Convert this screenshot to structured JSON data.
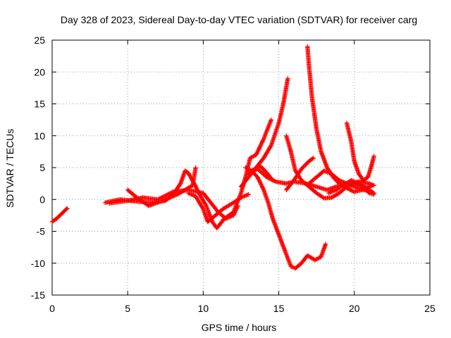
{
  "chart_data": {
    "type": "scatter",
    "title": "Day 328 of 2023, Sidereal Day-to-day VTEC variation (SDTVAR) for receiver carg",
    "xlabel": "GPS time / hours",
    "ylabel": "SDTVAR / TECUs",
    "xlim": [
      0,
      25
    ],
    "ylim": [
      -15,
      25
    ],
    "xticks": [
      "0",
      "5",
      "10",
      "15",
      "20",
      "25"
    ],
    "yticks": [
      "25",
      "20",
      "15",
      "10",
      "5",
      "0",
      "-5",
      "-10",
      "-15"
    ],
    "grid": true,
    "marker": "+",
    "color": "#ff0000",
    "series": [
      {
        "name": "s1",
        "points": [
          [
            0,
            -3.5
          ],
          [
            0.3,
            -3.0
          ],
          [
            0.6,
            -2.3
          ],
          [
            0.9,
            -1.6
          ],
          [
            1.0,
            -1.4
          ]
        ]
      },
      {
        "name": "s2",
        "points": [
          [
            3.5,
            -0.5
          ],
          [
            4.5,
            0.0
          ],
          [
            5.5,
            -0.3
          ],
          [
            6.5,
            -0.5
          ],
          [
            7.5,
            -0.2
          ],
          [
            8.0,
            0.8
          ],
          [
            8.5,
            2.5
          ],
          [
            8.8,
            4.5
          ],
          [
            9.0,
            4.2
          ],
          [
            9.4,
            2.5
          ],
          [
            9.8,
            0.6
          ],
          [
            10.2,
            -1.0
          ],
          [
            10.6,
            -3.5
          ],
          [
            10.9,
            -4.5
          ],
          [
            11.4,
            -3.0
          ],
          [
            12.0,
            -2.0
          ],
          [
            12.5,
            1.0
          ],
          [
            12.8,
            3.5
          ],
          [
            13.1,
            6.5
          ],
          [
            13.5,
            7.0
          ],
          [
            14.0,
            9.5
          ],
          [
            14.5,
            12.5
          ]
        ]
      },
      {
        "name": "s3",
        "points": [
          [
            3.8,
            -0.6
          ],
          [
            5.0,
            -0.2
          ],
          [
            6.0,
            0.3
          ],
          [
            7.0,
            0.0
          ],
          [
            8.0,
            1.2
          ],
          [
            9.0,
            1.5
          ],
          [
            10.0,
            1.0
          ],
          [
            10.5,
            -0.5
          ],
          [
            11.0,
            -2.0
          ],
          [
            11.5,
            -3.0
          ],
          [
            12.0,
            -2.5
          ],
          [
            12.3,
            -1.0
          ]
        ]
      },
      {
        "name": "s4",
        "points": [
          [
            5.0,
            1.5
          ],
          [
            5.6,
            0.3
          ],
          [
            6.4,
            -1.0
          ],
          [
            7.2,
            -0.3
          ],
          [
            8.3,
            0.8
          ],
          [
            9.3,
            2.2
          ],
          [
            9.5,
            5.0
          ]
        ]
      },
      {
        "name": "s5",
        "points": [
          [
            9.0,
            1.0
          ],
          [
            9.5,
            0.5
          ],
          [
            10.0,
            -1.5
          ],
          [
            10.3,
            -3.5
          ],
          [
            10.8,
            -2.5
          ],
          [
            11.3,
            -1.5
          ],
          [
            12.0,
            -0.5
          ],
          [
            12.5,
            0.3
          ],
          [
            13.0,
            0.8
          ]
        ]
      },
      {
        "name": "s6",
        "points": [
          [
            12.5,
            2.0
          ],
          [
            13.0,
            3.5
          ],
          [
            13.5,
            5.0
          ],
          [
            14.0,
            6.5
          ],
          [
            14.5,
            8.5
          ],
          [
            15.0,
            12.0
          ],
          [
            15.3,
            15.0
          ],
          [
            15.6,
            19.0
          ]
        ]
      },
      {
        "name": "s7",
        "points": [
          [
            12.8,
            5.0
          ],
          [
            13.2,
            4.5
          ],
          [
            13.6,
            3.5
          ],
          [
            14.0,
            1.5
          ],
          [
            14.3,
            -0.5
          ],
          [
            14.6,
            -3.0
          ],
          [
            15.0,
            -5.5
          ],
          [
            15.4,
            -8.0
          ],
          [
            15.8,
            -10.5
          ],
          [
            16.1,
            -10.8
          ],
          [
            16.5,
            -10.0
          ],
          [
            16.9,
            -8.8
          ],
          [
            17.4,
            -9.5
          ],
          [
            17.8,
            -9.0
          ],
          [
            18.1,
            -7.0
          ]
        ]
      },
      {
        "name": "s8",
        "points": [
          [
            13.0,
            4.0
          ],
          [
            13.6,
            4.8
          ],
          [
            14.2,
            3.5
          ],
          [
            14.8,
            2.8
          ],
          [
            15.5,
            2.5
          ],
          [
            16.0,
            2.8
          ],
          [
            16.8,
            2.5
          ],
          [
            17.5,
            2.0
          ],
          [
            18.2,
            1.5
          ],
          [
            18.8,
            2.0
          ],
          [
            19.5,
            2.5
          ],
          [
            20.3,
            2.8
          ],
          [
            21.0,
            2.5
          ],
          [
            21.3,
            2.2
          ]
        ]
      },
      {
        "name": "s9",
        "points": [
          [
            13.2,
            4.5
          ],
          [
            13.8,
            5.2
          ],
          [
            14.2,
            4.2
          ],
          [
            14.6,
            3.0
          ]
        ]
      },
      {
        "name": "s10",
        "points": [
          [
            15.5,
            10.0
          ],
          [
            15.8,
            7.5
          ],
          [
            16.1,
            4.5
          ],
          [
            16.5,
            3.0
          ],
          [
            17.0,
            2.0
          ],
          [
            17.5,
            1.0
          ],
          [
            18.0,
            0.2
          ],
          [
            18.5,
            0.3
          ],
          [
            19.0,
            1.0
          ],
          [
            19.5,
            2.0
          ],
          [
            20.0,
            2.5
          ],
          [
            20.5,
            2.0
          ],
          [
            21.0,
            1.0
          ],
          [
            21.3,
            0.8
          ]
        ]
      },
      {
        "name": "s11",
        "points": [
          [
            16.9,
            24.0
          ],
          [
            17.0,
            21.0
          ],
          [
            17.2,
            16.0
          ],
          [
            17.5,
            11.0
          ],
          [
            17.8,
            7.5
          ],
          [
            18.2,
            5.0
          ],
          [
            18.6,
            3.5
          ],
          [
            19.0,
            2.5
          ],
          [
            19.5,
            1.8
          ],
          [
            20.0,
            1.2
          ],
          [
            20.5,
            1.5
          ],
          [
            21.0,
            2.0
          ],
          [
            21.2,
            2.2
          ]
        ]
      },
      {
        "name": "s12",
        "points": [
          [
            15.5,
            1.5
          ],
          [
            16.0,
            3.0
          ],
          [
            16.5,
            4.8
          ],
          [
            17.0,
            6.0
          ],
          [
            17.3,
            6.5
          ]
        ]
      },
      {
        "name": "s13",
        "points": [
          [
            17.0,
            2.5
          ],
          [
            17.5,
            3.5
          ],
          [
            18.0,
            4.5
          ],
          [
            18.5,
            4.0
          ],
          [
            19.0,
            3.0
          ],
          [
            19.5,
            2.5
          ],
          [
            20.0,
            2.0
          ],
          [
            20.5,
            1.5
          ],
          [
            21.0,
            1.5
          ]
        ]
      },
      {
        "name": "s14",
        "points": [
          [
            19.5,
            12.0
          ],
          [
            19.8,
            9.0
          ],
          [
            20.0,
            6.0
          ],
          [
            20.3,
            4.0
          ],
          [
            20.6,
            3.0
          ],
          [
            20.9,
            3.5
          ],
          [
            21.1,
            5.0
          ],
          [
            21.3,
            6.8
          ]
        ]
      },
      {
        "name": "s15",
        "points": [
          [
            18.3,
            1.0
          ],
          [
            18.8,
            1.5
          ],
          [
            19.3,
            2.3
          ],
          [
            19.8,
            3.0
          ],
          [
            20.3,
            2.5
          ],
          [
            20.8,
            1.8
          ],
          [
            21.3,
            1.0
          ]
        ]
      }
    ]
  }
}
